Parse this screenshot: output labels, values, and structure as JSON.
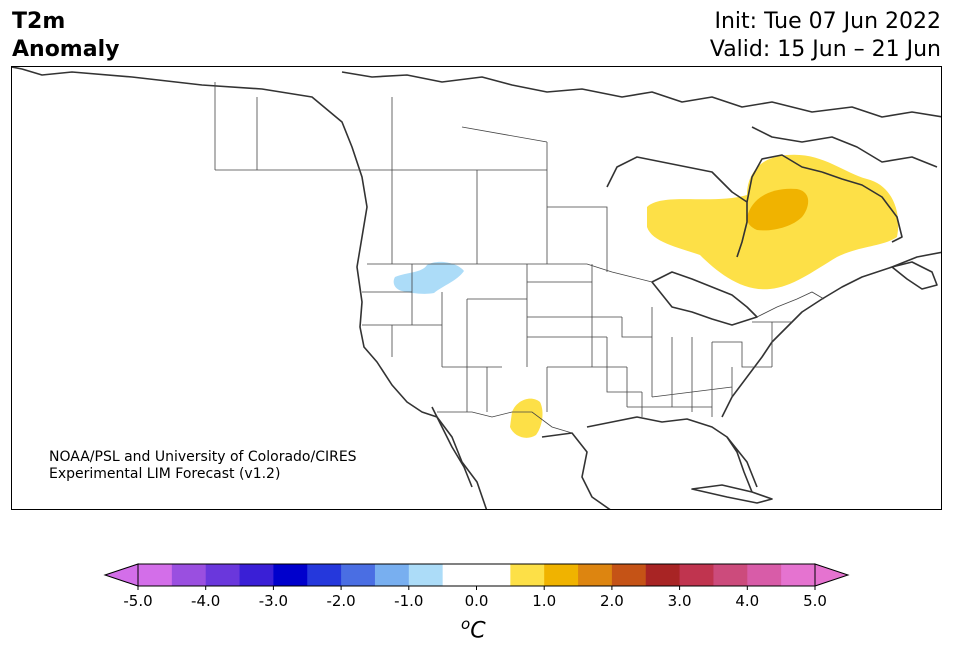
{
  "header": {
    "title_line1": "T2m",
    "title_line2": "Anomaly",
    "init_text": "Init: Tue 07 Jun 2022",
    "valid_text": "Valid: 15 Jun – 21 Jun"
  },
  "credit": {
    "line1": "NOAA/PSL and University of Colorado/CIRES",
    "line2": "Experimental LIM Forecast (v1.2)"
  },
  "colorbar": {
    "unit_base": "C",
    "unit_sup": "o",
    "ticks": [
      "-5.0",
      "-4.0",
      "-3.0",
      "-2.0",
      "-1.0",
      "0.0",
      "1.0",
      "2.0",
      "3.0",
      "4.0",
      "5.0"
    ],
    "colors": [
      "#d36ee9",
      "#9a4fe0",
      "#6a37dc",
      "#3a1fd6",
      "#0000cc",
      "#2538dc",
      "#4a6ee3",
      "#78aff0",
      "#acdcf8",
      "#ffffff",
      "#ffffff",
      "#fde047",
      "#f0b300",
      "#dd8510",
      "#c55316",
      "#a82424",
      "#c0344f",
      "#cc4b7c",
      "#d85ca8",
      "#e573d0"
    ],
    "extend_min_color": "#d36ee9",
    "extend_max_color": "#e573d0"
  },
  "anomaly_colors": {
    "warm_1": "#fde047",
    "warm_2": "#f0b300",
    "cool_1": "#acdcf8"
  }
}
